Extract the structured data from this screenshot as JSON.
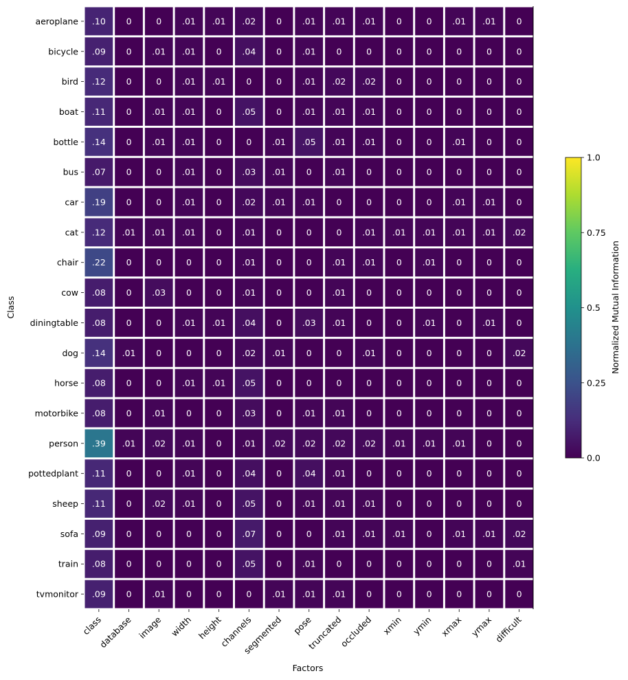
{
  "chart_data": {
    "type": "heatmap",
    "title": "",
    "xlabel": "Factors",
    "ylabel": "Class",
    "colorbar": {
      "label": "Normalized Mutual Information",
      "range": [
        0.0,
        1.0
      ],
      "ticks": [
        0.0,
        0.25,
        0.5,
        0.75,
        1.0
      ],
      "tick_labels": [
        "0.0",
        "0.25",
        "0.5",
        "0.75",
        "1.0"
      ],
      "colormap": "viridis"
    },
    "x_categories": [
      "class",
      "database",
      "image",
      "width",
      "height",
      "channels",
      "segmented",
      "pose",
      "truncated",
      "occluded",
      "xmin",
      "ymin",
      "xmax",
      "ymax",
      "difficult"
    ],
    "y_categories": [
      "aeroplane",
      "bicycle",
      "bird",
      "boat",
      "bottle",
      "bus",
      "car",
      "cat",
      "chair",
      "cow",
      "diningtable",
      "dog",
      "horse",
      "motorbike",
      "person",
      "pottedplant",
      "sheep",
      "sofa",
      "train",
      "tvmonitor"
    ],
    "values": [
      [
        0.1,
        0,
        0,
        0.01,
        0.01,
        0.02,
        0,
        0.01,
        0.01,
        0.01,
        0,
        0,
        0.01,
        0.01,
        0
      ],
      [
        0.09,
        0,
        0.01,
        0.01,
        0,
        0.04,
        0,
        0.01,
        0,
        0,
        0,
        0,
        0,
        0,
        0
      ],
      [
        0.12,
        0,
        0,
        0.01,
        0.01,
        0,
        0,
        0.01,
        0.02,
        0.02,
        0,
        0,
        0,
        0,
        0
      ],
      [
        0.11,
        0,
        0.01,
        0.01,
        0,
        0.05,
        0,
        0.01,
        0.01,
        0.01,
        0,
        0,
        0,
        0,
        0
      ],
      [
        0.14,
        0,
        0.01,
        0.01,
        0,
        0,
        0.01,
        0.05,
        0.01,
        0.01,
        0,
        0,
        0.01,
        0,
        0
      ],
      [
        0.07,
        0,
        0,
        0.01,
        0,
        0.03,
        0.01,
        0,
        0.01,
        0,
        0,
        0,
        0,
        0,
        0
      ],
      [
        0.19,
        0,
        0,
        0.01,
        0,
        0.02,
        0.01,
        0.01,
        0,
        0,
        0,
        0,
        0.01,
        0.01,
        0
      ],
      [
        0.12,
        0.01,
        0.01,
        0.01,
        0,
        0.01,
        0,
        0,
        0,
        0.01,
        0.01,
        0.01,
        0.01,
        0.01,
        0.02
      ],
      [
        0.22,
        0,
        0,
        0,
        0,
        0.01,
        0,
        0,
        0.01,
        0.01,
        0,
        0.01,
        0,
        0,
        0
      ],
      [
        0.08,
        0,
        0.03,
        0,
        0,
        0.01,
        0,
        0,
        0.01,
        0,
        0,
        0,
        0,
        0,
        0
      ],
      [
        0.08,
        0,
        0,
        0.01,
        0.01,
        0.04,
        0,
        0.03,
        0.01,
        0,
        0,
        0.01,
        0,
        0.01,
        0
      ],
      [
        0.14,
        0.01,
        0,
        0,
        0,
        0.02,
        0.01,
        0,
        0,
        0.01,
        0,
        0,
        0,
        0,
        0.02
      ],
      [
        0.08,
        0,
        0,
        0.01,
        0.01,
        0.05,
        0,
        0,
        0,
        0,
        0,
        0,
        0,
        0,
        0
      ],
      [
        0.08,
        0,
        0.01,
        0,
        0,
        0.03,
        0,
        0.01,
        0.01,
        0,
        0,
        0,
        0,
        0,
        0
      ],
      [
        0.39,
        0.01,
        0.02,
        0.01,
        0,
        0.01,
        0.02,
        0.02,
        0.02,
        0.02,
        0.01,
        0.01,
        0.01,
        0,
        0
      ],
      [
        0.11,
        0,
        0,
        0.01,
        0,
        0.04,
        0,
        0.04,
        0.01,
        0,
        0,
        0,
        0,
        0,
        0
      ],
      [
        0.11,
        0,
        0.02,
        0.01,
        0,
        0.05,
        0,
        0.01,
        0.01,
        0.01,
        0,
        0,
        0,
        0,
        0
      ],
      [
        0.09,
        0,
        0,
        0,
        0,
        0.07,
        0,
        0,
        0.01,
        0.01,
        0.01,
        0,
        0.01,
        0.01,
        0.02
      ],
      [
        0.08,
        0,
        0,
        0,
        0,
        0.05,
        0,
        0.01,
        0,
        0,
        0,
        0,
        0,
        0,
        0.01
      ],
      [
        0.09,
        0,
        0.01,
        0,
        0,
        0,
        0.01,
        0.01,
        0.01,
        0,
        0,
        0,
        0,
        0,
        0
      ]
    ],
    "cell_labels": [
      [
        ".10",
        "0",
        "0",
        ".01",
        ".01",
        ".02",
        "0",
        ".01",
        ".01",
        ".01",
        "0",
        "0",
        ".01",
        ".01",
        "0"
      ],
      [
        ".09",
        "0",
        ".01",
        ".01",
        "0",
        ".04",
        "0",
        ".01",
        "0",
        "0",
        "0",
        "0",
        "0",
        "0",
        "0"
      ],
      [
        ".12",
        "0",
        "0",
        ".01",
        ".01",
        "0",
        "0",
        ".01",
        ".02",
        ".02",
        "0",
        "0",
        "0",
        "0",
        "0"
      ],
      [
        ".11",
        "0",
        ".01",
        ".01",
        "0",
        ".05",
        "0",
        ".01",
        ".01",
        ".01",
        "0",
        "0",
        "0",
        "0",
        "0"
      ],
      [
        ".14",
        "0",
        ".01",
        ".01",
        "0",
        "0",
        ".01",
        ".05",
        ".01",
        ".01",
        "0",
        "0",
        ".01",
        "0",
        "0"
      ],
      [
        ".07",
        "0",
        "0",
        ".01",
        "0",
        ".03",
        ".01",
        "0",
        ".01",
        "0",
        "0",
        "0",
        "0",
        "0",
        "0"
      ],
      [
        ".19",
        "0",
        "0",
        ".01",
        "0",
        ".02",
        ".01",
        ".01",
        "0",
        "0",
        "0",
        "0",
        ".01",
        ".01",
        "0"
      ],
      [
        ".12",
        ".01",
        ".01",
        ".01",
        "0",
        ".01",
        "0",
        "0",
        "0",
        ".01",
        ".01",
        ".01",
        ".01",
        ".01",
        ".02"
      ],
      [
        ".22",
        "0",
        "0",
        "0",
        "0",
        ".01",
        "0",
        "0",
        ".01",
        ".01",
        "0",
        ".01",
        "0",
        "0",
        "0"
      ],
      [
        ".08",
        "0",
        ".03",
        "0",
        "0",
        ".01",
        "0",
        "0",
        ".01",
        "0",
        "0",
        "0",
        "0",
        "0",
        "0"
      ],
      [
        ".08",
        "0",
        "0",
        ".01",
        ".01",
        ".04",
        "0",
        ".03",
        ".01",
        "0",
        "0",
        ".01",
        "0",
        ".01",
        "0"
      ],
      [
        ".14",
        ".01",
        "0",
        "0",
        "0",
        ".02",
        ".01",
        "0",
        "0",
        ".01",
        "0",
        "0",
        "0",
        "0",
        ".02"
      ],
      [
        ".08",
        "0",
        "0",
        ".01",
        ".01",
        ".05",
        "0",
        "0",
        "0",
        "0",
        "0",
        "0",
        "0",
        "0",
        "0"
      ],
      [
        ".08",
        "0",
        ".01",
        "0",
        "0",
        ".03",
        "0",
        ".01",
        ".01",
        "0",
        "0",
        "0",
        "0",
        "0",
        "0"
      ],
      [
        ".39",
        ".01",
        ".02",
        ".01",
        "0",
        ".01",
        ".02",
        ".02",
        ".02",
        ".02",
        ".01",
        ".01",
        ".01",
        "0",
        "0"
      ],
      [
        ".11",
        "0",
        "0",
        ".01",
        "0",
        ".04",
        "0",
        ".04",
        ".01",
        "0",
        "0",
        "0",
        "0",
        "0",
        "0"
      ],
      [
        ".11",
        "0",
        ".02",
        ".01",
        "0",
        ".05",
        "0",
        ".01",
        ".01",
        ".01",
        "0",
        "0",
        "0",
        "0",
        "0"
      ],
      [
        ".09",
        "0",
        "0",
        "0",
        "0",
        ".07",
        "0",
        "0",
        ".01",
        ".01",
        ".01",
        "0",
        ".01",
        ".01",
        ".02"
      ],
      [
        ".08",
        "0",
        "0",
        "0",
        "0",
        ".05",
        "0",
        ".01",
        "0",
        "0",
        "0",
        "0",
        "0",
        "0",
        ".01"
      ],
      [
        ".09",
        "0",
        ".01",
        "0",
        "0",
        "0",
        ".01",
        ".01",
        ".01",
        "0",
        "0",
        "0",
        "0",
        "0",
        "0"
      ]
    ],
    "grid": false,
    "legend_placement": "right"
  }
}
